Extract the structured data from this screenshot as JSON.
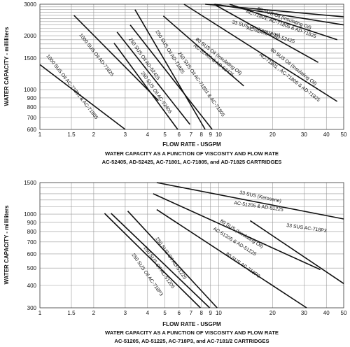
{
  "chart_data": [
    {
      "type": "line",
      "x_scale": "log",
      "y_scale": "log",
      "xlabel": "FLOW RATE - USGPM",
      "ylabel": "WATER CAPACITY - milliliters",
      "title": "WATER CAPACITY AS A FUNCTION OF VISCOSITY AND FLOW RATE",
      "subtitle": "AC-52405, AD-52425, AC-71801, AC-71805, and AD-71825 CARTRIDGES",
      "xlim": [
        1,
        50
      ],
      "ylim": [
        600,
        3000
      ],
      "x_ticks": [
        "1",
        "1.5",
        "2",
        "3",
        "4",
        "5",
        "6",
        "7",
        "8",
        "9",
        "10",
        "20",
        "30",
        "40",
        "50"
      ],
      "y_ticks": [
        "600",
        "700",
        "800",
        "900",
        "1000",
        "1500",
        "2000",
        "3000"
      ],
      "grid": true,
      "series": [
        {
          "name": "1000 SUS Oil AC-71801 & AC-71805",
          "x": [
            1.0,
            3.0
          ],
          "y": [
            1380,
            600
          ]
        },
        {
          "name": "1000 SUS Oil AD-71825",
          "x": [
            1.55,
            4.6
          ],
          "y": [
            2600,
            870
          ]
        },
        {
          "name": "250 SUS Oil AC-52405",
          "x": [
            2.6,
            5.9
          ],
          "y": [
            1820,
            600
          ]
        },
        {
          "name": "250 SUS Oil AD-52425",
          "x": [
            2.7,
            6.9
          ],
          "y": [
            2100,
            640
          ]
        },
        {
          "name": "250 SUS Oil AD-71825",
          "x": [
            3.4,
            8.4
          ],
          "y": [
            2800,
            600
          ]
        },
        {
          "name": "250 SUS Oil AC-71801 & AC-71805",
          "x": [
            3.2,
            9.2
          ],
          "y": [
            2300,
            600
          ]
        },
        {
          "name": "80 SUS Oil (Insulating Oil) AC-52405 & AD-52425",
          "x": [
            4.9,
            13.8
          ],
          "y": [
            2580,
            1050
          ]
        },
        {
          "name": "80 SUS Oil (Insulating Oil) AC-71801, AC-71805 & AD-71825",
          "x": [
            6.4,
            46
          ],
          "y": [
            3000,
            860
          ]
        },
        {
          "name": "33 SUS Oil (Kerosene) AC-52405 & AD-52425",
          "x": [
            9.4,
            36
          ],
          "y": [
            3000,
            1420
          ]
        },
        {
          "name": "80 SUS Oil (Insulating Oil) AC-71801, AC-71805 & AD-71825",
          "x": [
            11.5,
            46
          ],
          "y": [
            3000,
            1900
          ]
        },
        {
          "name": "33 SUS Oil (Kerosene)",
          "x": [
            9.5,
            50
          ],
          "y": [
            3000,
            2300
          ]
        },
        {
          "name": "33 SUS Oil (Kerosene) AC-71801, AC-71805 & AD-71825",
          "x": [
            8.4,
            50
          ],
          "y": [
            3000,
            2550
          ]
        }
      ]
    },
    {
      "type": "line",
      "x_scale": "log",
      "y_scale": "log",
      "xlabel": "FLOW RATE - USGPM",
      "ylabel": "WATER CAPACITY - milliliters",
      "title": "WATER CAPACITY AS A FUNCTION OF VISCOSITY AND FLOW RATE",
      "subtitle": "AC-51205, AD-51225, AC-718P3, and AC-7181/2 CARTRIDGES",
      "xlim": [
        1,
        50
      ],
      "ylim": [
        300,
        1500
      ],
      "x_ticks": [
        "1",
        "1.5",
        "2",
        "3",
        "4",
        "5",
        "6",
        "7",
        "8",
        "9",
        "10",
        "20",
        "30",
        "40",
        "50"
      ],
      "y_ticks": [
        "300",
        "400",
        "500",
        "600",
        "700",
        "800",
        "900",
        "1000",
        "1500"
      ],
      "grid": true,
      "series": [
        {
          "name": "250 SUS Oil AC-718P3",
          "x": [
            2.3,
            7.9
          ],
          "y": [
            1010,
            300
          ]
        },
        {
          "name": "250 SUS Oil AC-51205",
          "x": [
            2.5,
            8.9
          ],
          "y": [
            1010,
            300
          ]
        },
        {
          "name": "250 SUS Oil AD-51225",
          "x": [
            3.1,
            9.8
          ],
          "y": [
            1040,
            300
          ]
        },
        {
          "name": "80 SUS Oil AC-718P3",
          "x": [
            4.5,
            31
          ],
          "y": [
            1060,
            300
          ]
        },
        {
          "name": "80 SUS (Insulating Oil) AC-51205 & AD-51225",
          "x": [
            4.3,
            37
          ],
          "y": [
            1300,
            490
          ]
        },
        {
          "name": "33 SUS (Kerosene) AC-51205 & AD-51225",
          "x": [
            4.5,
            50
          ],
          "y": [
            1500,
            940
          ]
        },
        {
          "name": "33 SUS AC-718P3",
          "x": [
            15,
            50
          ],
          "y": [
            920,
            410
          ]
        }
      ]
    }
  ],
  "charts": [
    {
      "ylabel": "WATER CAPACITY - milliliters",
      "xlabel": "FLOW RATE - USGPM",
      "caption_1": "WATER CAPACITY AS A FUNCTION OF VISCOSITY AND FLOW RATE",
      "caption_2": "AC-52405, AD-52425, AC-71801, AC-71805, and AD-71825 CARTRIDGES",
      "y_tick_labels": [
        "600",
        "700",
        "800",
        "900",
        "1000",
        "1500",
        "2000",
        "3000"
      ],
      "x_tick_labels": [
        "1",
        "1.5",
        "2",
        "3",
        "4",
        "5",
        "6",
        "7",
        "8",
        "9",
        "10",
        "20",
        "30",
        "40",
        "50"
      ],
      "labels": [
        "1000 SUS Oil AC-71801 & AC-71805",
        "1000 SUS Oil AD-71825",
        "250 SUS Oil AD-52425",
        "250 SUS Oil AC-52405",
        "250 SUS Oil AD-71825",
        "250 SUS Oil AC-71801 & AC-71805",
        "80 SUS Oil (Insulating Oil)",
        "AC-52405 & AD-52425",
        "80 SUS Oil (Insulating Oil)",
        "AC-71801 , AC-71805 & AD-71825",
        "33 SUS Oil (Kerosene)",
        "AC-52405 & AD-52425",
        "80 SUS Oil (Insulating Oil)",
        "AC-71801, AC-71805 & AD-71825"
      ]
    },
    {
      "ylabel": "WATER CAPACITY - milliliters",
      "xlabel": "FLOW RATE - USGPM",
      "caption_1": "WATER CAPACITY AS A FUNCTION OF VISCOSITY AND FLOW RATE",
      "caption_2": "AC-51205, AD-51225, AC-718P3, and AC-7181/2 CARTRIDGES",
      "y_tick_labels": [
        "300",
        "400",
        "500",
        "600",
        "700",
        "800",
        "900",
        "1000",
        "1500"
      ],
      "x_tick_labels": [
        "1",
        "1.5",
        "2",
        "3",
        "4",
        "5",
        "6",
        "7",
        "8",
        "9",
        "10",
        "20",
        "30",
        "40",
        "50"
      ],
      "labels": [
        "33 SUS (Kerosene)",
        "AC-51205 & AD-51225",
        "33 SUS AC-718P3",
        "80 SUS (Insulating Oil)",
        "AC-51205 & AD-51225",
        "80 SUS AC-718P3",
        "250 SUS Oil AD-51225",
        "250 SUS Oil AC-51205",
        "250 SUS Oil AC-718P3"
      ]
    }
  ]
}
